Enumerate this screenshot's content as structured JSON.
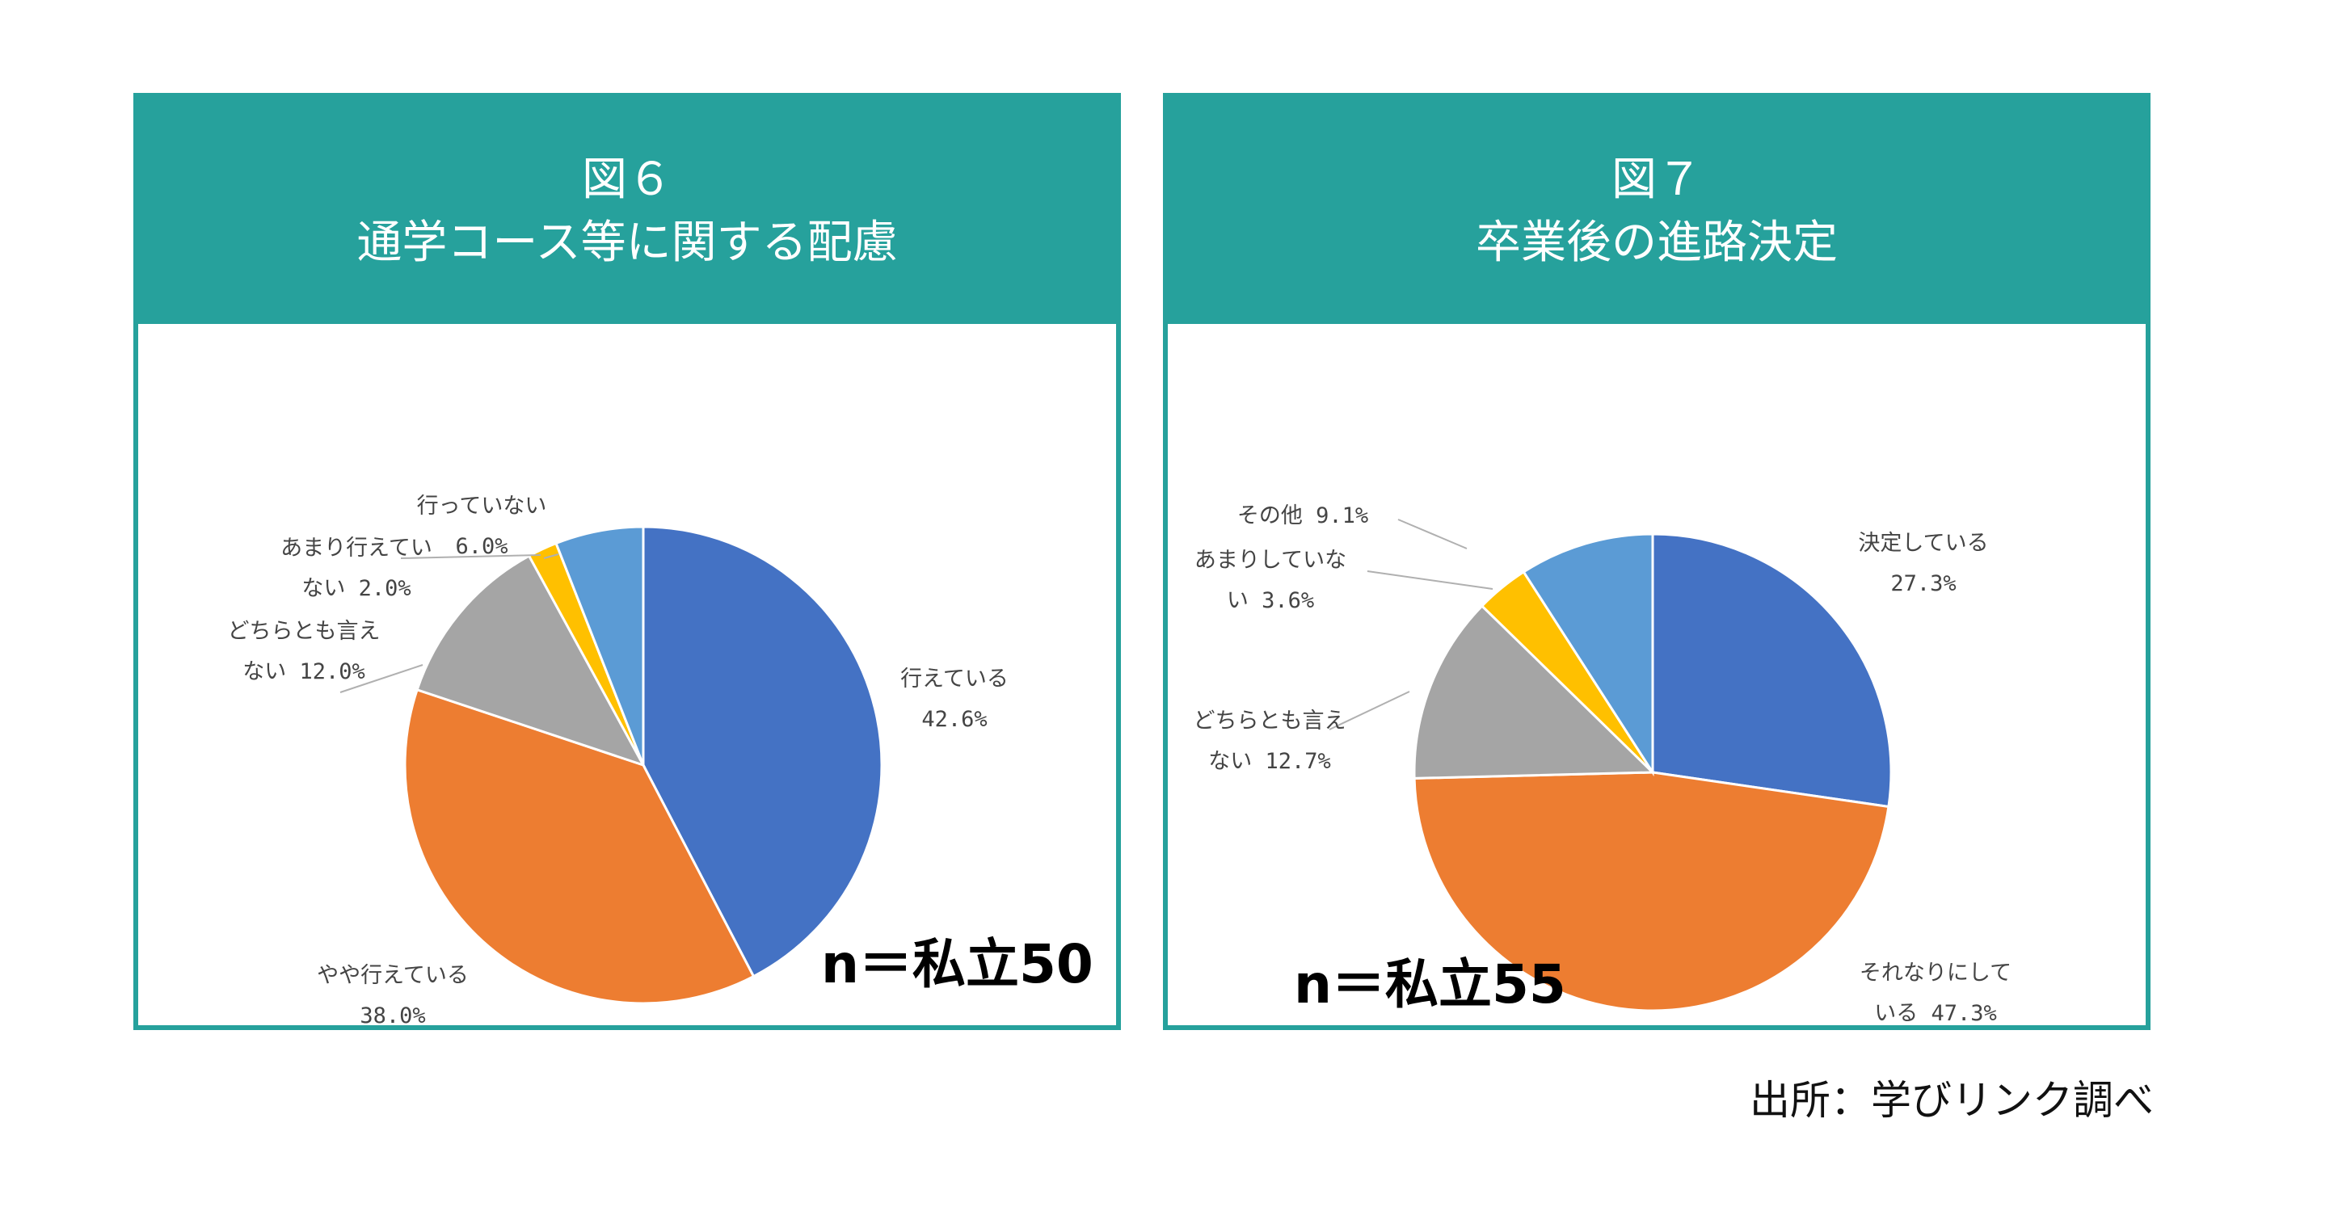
{
  "source_note": "出所：学びリンク調べ",
  "chart_data": [
    {
      "type": "pie",
      "title_line1": "図６",
      "title_line2": "通学コース等に関する配慮",
      "annotation": "n＝私立50",
      "slices": [
        {
          "label_lines": [
            "行えている",
            "42.6%"
          ],
          "value": 42.6,
          "color": "#4472c4"
        },
        {
          "label_lines": [
            "やや行えている",
            "38.0%"
          ],
          "value": 38.0,
          "color": "#ed7d31"
        },
        {
          "label_lines": [
            "どちらとも言え",
            "ない 12.0%"
          ],
          "value": 12.0,
          "color": "#a5a5a5"
        },
        {
          "label_lines": [
            "あまり行えてい",
            "ない 2.0%"
          ],
          "value": 2.0,
          "color": "#ffc000"
        },
        {
          "label_lines": [
            "行っていない",
            "6.0%"
          ],
          "value": 6.0,
          "color": "#5b9bd5"
        }
      ]
    },
    {
      "type": "pie",
      "title_line1": "図７",
      "title_line2": "卒業後の進路決定",
      "annotation": "n＝私立55",
      "slices": [
        {
          "label_lines": [
            "決定している",
            "27.3%"
          ],
          "value": 27.3,
          "color": "#4472c4"
        },
        {
          "label_lines": [
            "それなりにして",
            "いる 47.3%"
          ],
          "value": 47.3,
          "color": "#ed7d31"
        },
        {
          "label_lines": [
            "どちらとも言え",
            "ない 12.7%"
          ],
          "value": 12.7,
          "color": "#a5a5a5"
        },
        {
          "label_lines": [
            "あまりしていな",
            "い 3.6%"
          ],
          "value": 3.6,
          "color": "#ffc000"
        },
        {
          "label_lines": [
            "その他 9.1%"
          ],
          "value": 9.1,
          "color": "#5b9bd5"
        }
      ]
    }
  ]
}
